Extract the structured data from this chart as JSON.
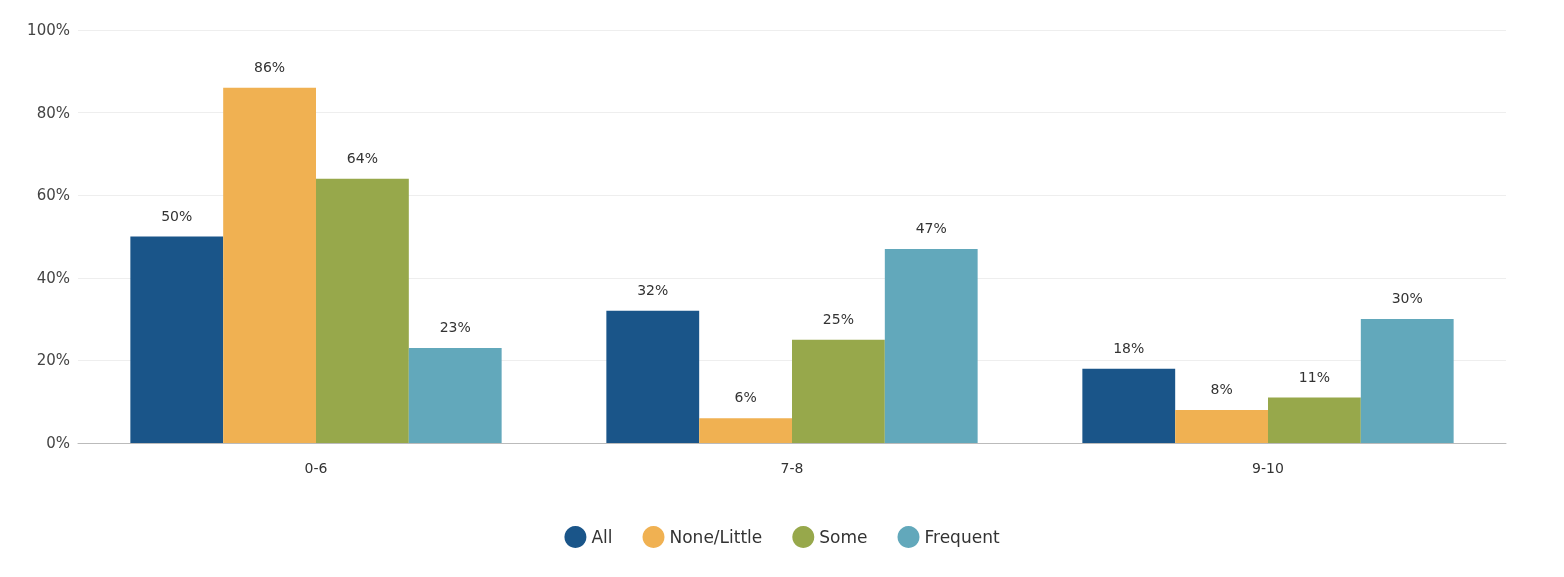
{
  "chart_data": {
    "type": "bar",
    "categories": [
      "0-6",
      "7-8",
      "9-10"
    ],
    "series": [
      {
        "name": "All",
        "color": "#1a5589",
        "values": [
          50,
          32,
          18
        ],
        "value_labels": [
          "50%",
          "32%",
          "18%"
        ]
      },
      {
        "name": "None/Little",
        "color": "#f0b152",
        "values": [
          86,
          6,
          8
        ],
        "value_labels": [
          "86%",
          "6%",
          "8%"
        ]
      },
      {
        "name": "Some",
        "color": "#97a84b",
        "values": [
          64,
          25,
          11
        ],
        "value_labels": [
          "64%",
          "25%",
          "11%"
        ]
      },
      {
        "name": "Frequent",
        "color": "#62a8bb",
        "values": [
          23,
          47,
          30
        ],
        "value_labels": [
          "23%",
          "47%",
          "30%"
        ]
      }
    ],
    "ylim": [
      0,
      100
    ],
    "yticks": [
      {
        "value": 0,
        "label": "0%"
      },
      {
        "value": 20,
        "label": "20%"
      },
      {
        "value": 40,
        "label": "40%"
      },
      {
        "value": 60,
        "label": "60%"
      },
      {
        "value": 80,
        "label": "80%"
      },
      {
        "value": 100,
        "label": "100%"
      }
    ],
    "grid": "y",
    "legend": "bottom"
  }
}
